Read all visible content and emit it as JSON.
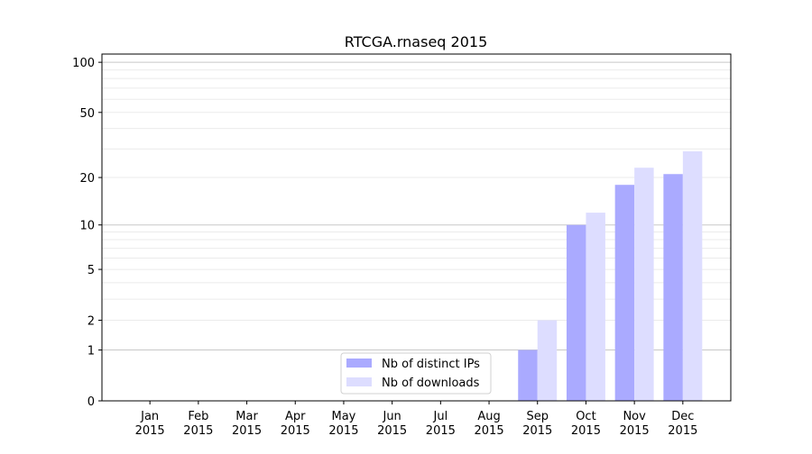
{
  "chart_data": {
    "type": "bar",
    "title": "RTCGA.rnaseq 2015",
    "xlabel": "",
    "ylabel": "",
    "yscale": "log10(1+y)",
    "ylim": [
      0,
      112
    ],
    "yticks": [
      0,
      1,
      2,
      5,
      10,
      20,
      50,
      100
    ],
    "ytick_labels": [
      "0",
      "1",
      "2",
      "5",
      "10",
      "20",
      "50",
      "100"
    ],
    "grid": "horizontal, major at 1/10/100, minor between",
    "categories": [
      [
        "Jan",
        "2015"
      ],
      [
        "Feb",
        "2015"
      ],
      [
        "Mar",
        "2015"
      ],
      [
        "Apr",
        "2015"
      ],
      [
        "May",
        "2015"
      ],
      [
        "Jun",
        "2015"
      ],
      [
        "Jul",
        "2015"
      ],
      [
        "Aug",
        "2015"
      ],
      [
        "Sep",
        "2015"
      ],
      [
        "Oct",
        "2015"
      ],
      [
        "Nov",
        "2015"
      ],
      [
        "Dec",
        "2015"
      ]
    ],
    "series": [
      {
        "name": "Nb of distinct IPs",
        "color": "#aaaaff",
        "values": [
          0,
          0,
          0,
          0,
          0,
          0,
          0,
          0,
          1,
          10,
          18,
          21
        ]
      },
      {
        "name": "Nb of downloads",
        "color": "#ddddff",
        "values": [
          0,
          0,
          0,
          0,
          0,
          0,
          0,
          0,
          2,
          12,
          23,
          29
        ]
      }
    ],
    "legend_placement": "lower-center"
  }
}
